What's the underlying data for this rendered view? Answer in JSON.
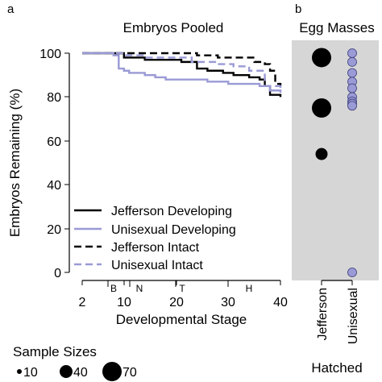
{
  "colors": {
    "jefferson": "#000000",
    "unisexual": "#9a9ad6",
    "panel_bg": "#d6d6d6"
  },
  "panel_a": {
    "letter": "a",
    "title": "Embryos Pooled",
    "ylabel": "Embryos Remaining (%)",
    "xlabel": "Developmental Stage",
    "y_ticks": [
      "0",
      "20",
      "40",
      "60",
      "80",
      "100"
    ],
    "x_ticks": [
      "2",
      "10",
      "20",
      "30",
      "40"
    ],
    "stage_markers": [
      "B",
      "N",
      "T",
      "H"
    ],
    "legend": [
      "Jefferson Developing",
      "Unisexual Developing",
      "Jefferson Intact",
      "Unisexual Intact"
    ]
  },
  "panel_b": {
    "letter": "b",
    "title": "Egg Masses",
    "categories": [
      "Jefferson",
      "Unisexual"
    ],
    "xlabel": "Hatched"
  },
  "sample_sizes": {
    "title": "Sample Sizes",
    "labels": [
      "10",
      "40",
      "70"
    ]
  },
  "chart_data": [
    {
      "type": "line",
      "title": "Embryos Pooled",
      "xlabel": "Developmental Stage",
      "ylabel": "Embryos Remaining (%)",
      "xlim": [
        2,
        40
      ],
      "ylim": [
        0,
        100
      ],
      "legend_position": "bottom-left",
      "series": [
        {
          "name": "Jefferson Developing",
          "style": "solid",
          "color": "#000000",
          "points": [
            [
              2,
              100
            ],
            [
              8,
              100
            ],
            [
              10,
              98
            ],
            [
              12,
              98
            ],
            [
              14,
              97
            ],
            [
              18,
              97
            ],
            [
              20,
              97
            ],
            [
              21,
              96
            ],
            [
              23,
              96
            ],
            [
              24,
              93
            ],
            [
              26,
              92
            ],
            [
              29,
              91
            ],
            [
              31,
              90
            ],
            [
              34,
              89
            ],
            [
              36,
              88
            ],
            [
              37,
              85
            ],
            [
              38,
              81
            ],
            [
              40,
              80
            ]
          ]
        },
        {
          "name": "Unisexual Developing",
          "style": "solid",
          "color": "#9a9ad6",
          "points": [
            [
              2,
              100
            ],
            [
              6,
              100
            ],
            [
              8,
              99
            ],
            [
              9,
              93
            ],
            [
              10,
              92
            ],
            [
              11,
              91
            ],
            [
              14,
              90
            ],
            [
              16,
              89
            ],
            [
              18,
              88
            ],
            [
              22,
              88
            ],
            [
              26,
              87
            ],
            [
              30,
              86
            ],
            [
              34,
              86
            ],
            [
              36,
              85
            ],
            [
              38,
              83
            ],
            [
              40,
              82
            ]
          ]
        },
        {
          "name": "Jefferson Intact",
          "style": "dashed",
          "color": "#000000",
          "points": [
            [
              2,
              100
            ],
            [
              20,
              100
            ],
            [
              24,
              99
            ],
            [
              28,
              98
            ],
            [
              32,
              98
            ],
            [
              35,
              96
            ],
            [
              37,
              95
            ],
            [
              38,
              92
            ],
            [
              39,
              86
            ],
            [
              40,
              85
            ]
          ]
        },
        {
          "name": "Unisexual Intact",
          "style": "dashed",
          "color": "#9a9ad6",
          "points": [
            [
              2,
              100
            ],
            [
              8,
              100
            ],
            [
              10,
              99
            ],
            [
              14,
              98
            ],
            [
              18,
              98
            ],
            [
              21,
              98
            ],
            [
              23,
              96
            ],
            [
              28,
              95
            ],
            [
              31,
              94
            ],
            [
              34,
              92
            ],
            [
              37,
              85
            ],
            [
              40,
              82
            ]
          ]
        }
      ]
    },
    {
      "type": "scatter",
      "title": "Egg Masses",
      "xlabel": "Hatched",
      "ylabel": "Embryos Remaining (%)",
      "categories": [
        "Jefferson",
        "Unisexual"
      ],
      "ylim": [
        0,
        100
      ],
      "size_legend": {
        "title": "Sample Sizes",
        "values": [
          10,
          40,
          70
        ]
      },
      "series": [
        {
          "name": "Jefferson",
          "color": "#000000",
          "points": [
            {
              "y": 98,
              "n": 70
            },
            {
              "y": 75,
              "n": 70
            },
            {
              "y": 54,
              "n": 40
            }
          ]
        },
        {
          "name": "Unisexual",
          "color": "#9a9ad6",
          "points": [
            {
              "y": 100,
              "n": 10
            },
            {
              "y": 96,
              "n": 10
            },
            {
              "y": 91,
              "n": 10
            },
            {
              "y": 87,
              "n": 10
            },
            {
              "y": 84,
              "n": 10
            },
            {
              "y": 80,
              "n": 10
            },
            {
              "y": 78,
              "n": 10
            },
            {
              "y": 77,
              "n": 10
            },
            {
              "y": 76,
              "n": 10
            },
            {
              "y": 0,
              "n": 10
            }
          ]
        }
      ]
    }
  ]
}
